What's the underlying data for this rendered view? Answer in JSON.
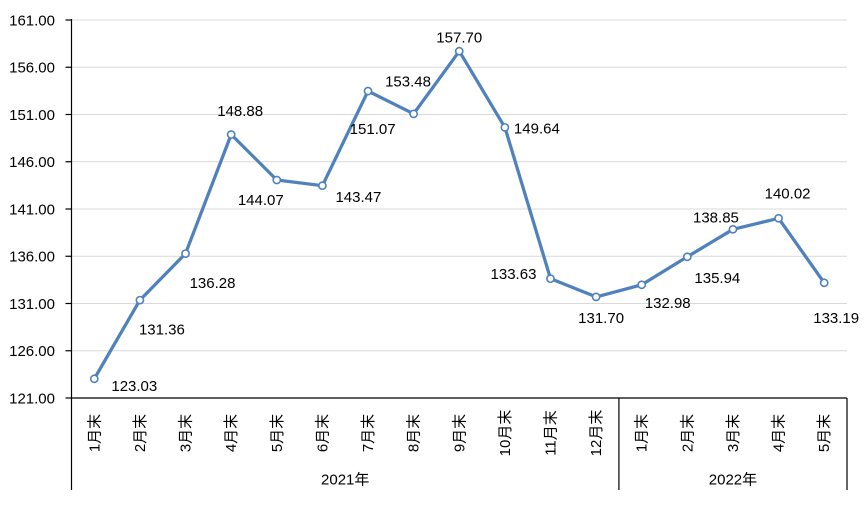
{
  "chart_data": {
    "type": "line",
    "title": "",
    "legend": "none",
    "grid": true,
    "categories": [
      "1月末",
      "2月末",
      "3月末",
      "4月末",
      "5月末",
      "6月末",
      "7月末",
      "8月末",
      "9月末",
      "10月末",
      "11月末",
      "12月末",
      "1月末",
      "2月末",
      "3月末",
      "4月末",
      "5月末"
    ],
    "x_groups": [
      {
        "label": "2021年",
        "count": 12
      },
      {
        "label": "2022年",
        "count": 5
      }
    ],
    "series": [
      {
        "name": "",
        "values": [
          123.03,
          131.36,
          136.28,
          148.88,
          144.07,
          143.47,
          153.48,
          151.07,
          157.7,
          149.64,
          133.63,
          131.7,
          132.98,
          135.94,
          138.85,
          140.02,
          133.19
        ],
        "data_labels": [
          "123.03",
          "131.36",
          "136.28",
          "148.88",
          "144.07",
          "143.47",
          "153.48",
          "151.07",
          "157.70",
          "149.64",
          "133.63",
          "131.70",
          "132.98",
          "135.94",
          "138.85",
          "140.02",
          "133.19"
        ],
        "label_offsets": [
          [
            40,
            7
          ],
          [
            22,
            29
          ],
          [
            27,
            29
          ],
          [
            9,
            -24
          ],
          [
            -16,
            20
          ],
          [
            36,
            11
          ],
          [
            40,
            -10
          ],
          [
            -41,
            15
          ],
          [
            0,
            -14
          ],
          [
            32,
            1
          ],
          [
            -37,
            -5
          ],
          [
            5,
            21
          ],
          [
            26,
            18
          ],
          [
            30,
            21
          ],
          [
            -17,
            -12
          ],
          [
            9,
            -25
          ],
          [
            12,
            35
          ]
        ],
        "line_color": "#4F81BD",
        "marker": "open-circle",
        "marker_fill": "#FFFFFF"
      }
    ],
    "ylim": [
      121,
      161
    ],
    "ytick_step": 5,
    "yticks": [
      "161.00",
      "156.00",
      "151.00",
      "146.00",
      "141.00",
      "136.00",
      "131.00",
      "126.00",
      "121.00"
    ],
    "colors": {
      "grid": "#D9D9D9",
      "axis": "#000000",
      "text": "#000000",
      "background": "#FFFFFF"
    }
  }
}
